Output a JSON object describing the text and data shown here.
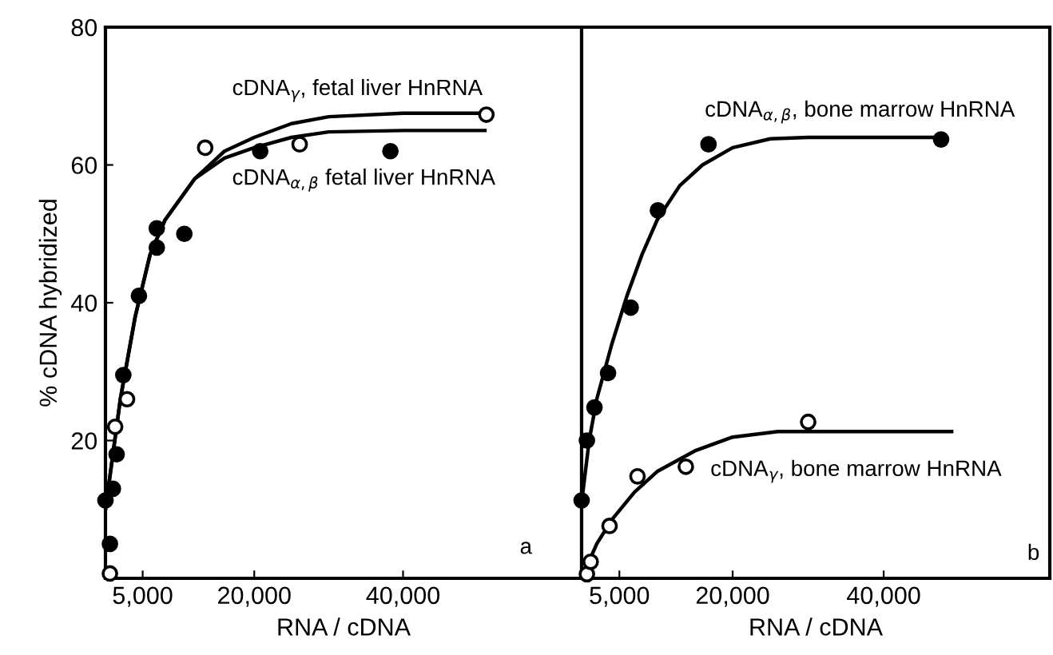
{
  "chart_data": [
    {
      "type": "scatter",
      "ylabel": "% cDNA hybridized",
      "xlabel": "RNA / cDNA",
      "xlim": [
        0,
        64000
      ],
      "ylim": [
        0,
        80
      ],
      "xticks": [
        {
          "value": 5000,
          "label": "5,000"
        },
        {
          "value": 20000,
          "label": "20,000"
        },
        {
          "value": 40000,
          "label": "40,000"
        }
      ],
      "yticks": [
        {
          "value": 0,
          "label": null
        },
        20,
        40,
        60,
        80
      ],
      "grid": false,
      "legend": false,
      "marker": "circle",
      "series": [
        {
          "color": "#000000",
          "x": [
            0,
            600,
            1000,
            1500,
            2400,
            4500,
            6900,
            6900,
            10600,
            20800,
            38300
          ],
          "values": [
            11.3,
            5,
            13,
            18,
            29.5,
            41,
            48,
            50.8,
            50,
            62,
            62
          ]
        },
        {
          "color": "#ffffff",
          "x": [
            600,
            1300,
            2900,
            13400,
            26100,
            51200
          ],
          "values": [
            0.7,
            22,
            26,
            62.5,
            63,
            67.3
          ]
        },
        {
          "type": "line",
          "color": "#000000",
          "marker": "none",
          "x": [
            0,
            1000,
            2000,
            4000,
            6000,
            8000,
            12000,
            16000,
            20000,
            25000,
            30000,
            40000,
            51000
          ],
          "values": [
            10,
            18,
            26,
            38,
            47,
            52,
            58,
            62,
            64,
            66,
            67,
            67.5,
            67.5
          ]
        },
        {
          "type": "line",
          "color": "#000000",
          "marker": "none",
          "x": [
            0,
            1000,
            2000,
            4000,
            6000,
            8000,
            12000,
            16000,
            20000,
            25000,
            30000,
            40000,
            51000
          ],
          "values": [
            10,
            18,
            26,
            38,
            47,
            52,
            58,
            61,
            62.5,
            64,
            64.8,
            65,
            65
          ]
        }
      ],
      "annotations": [
        "cDNA$_{γ}$, fetal liver HnRNA",
        "cDNA$_{α,β}$ fetal liver HnRNA",
        "a"
      ]
    },
    {
      "type": "scatter",
      "xlabel": "RNA / cDNA",
      "xlim": [
        0,
        62000
      ],
      "ylim": [
        0,
        80
      ],
      "xticks": [
        {
          "value": 5000,
          "label": "5,000"
        },
        {
          "value": 20000,
          "label": "20,000"
        },
        {
          "value": 40000,
          "label": "40,000"
        }
      ],
      "tick_labels": "x",
      "grid": false,
      "legend": false,
      "marker": "circle",
      "series": [
        {
          "color": "#000000",
          "x": [
            0,
            700,
            1700,
            3500,
            6500,
            10100,
            16800,
            47600
          ],
          "values": [
            11.3,
            20,
            24.8,
            29.8,
            39.3,
            53.4,
            63,
            63.7
          ]
        },
        {
          "color": "#ffffff",
          "x": [
            700,
            1200,
            3700,
            7400,
            13800,
            30000
          ],
          "values": [
            0.6,
            2.4,
            7.6,
            14.8,
            16.2,
            22.7
          ]
        },
        {
          "type": "line",
          "color": "#000000",
          "marker": "none",
          "x": [
            0,
            1000,
            2000,
            4000,
            6000,
            8000,
            10000,
            13000,
            16000,
            20000,
            25000,
            30000,
            48000
          ],
          "values": [
            11,
            20,
            26,
            34,
            41,
            47,
            52,
            57,
            60,
            62.5,
            63.8,
            64,
            64
          ]
        },
        {
          "type": "line",
          "color": "#000000",
          "marker": "none",
          "x": [
            0,
            2000,
            4000,
            7000,
            10000,
            15000,
            20000,
            26000,
            35000,
            49000
          ],
          "values": [
            0,
            5,
            8.5,
            12.5,
            15.5,
            18.5,
            20.5,
            21.3,
            21.3,
            21.3
          ]
        }
      ],
      "annotations": [
        "cDNA$_{α,β}$, bone marrow HnRNA",
        "cDNA$_{γ}$, bone marrow HnRNA",
        "b"
      ]
    }
  ]
}
